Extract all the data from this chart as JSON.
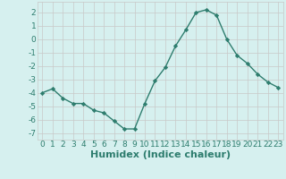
{
  "x": [
    0,
    1,
    2,
    3,
    4,
    5,
    6,
    7,
    8,
    9,
    10,
    11,
    12,
    13,
    14,
    15,
    16,
    17,
    18,
    19,
    20,
    21,
    22,
    23
  ],
  "y": [
    -4.0,
    -3.7,
    -4.4,
    -4.8,
    -4.8,
    -5.3,
    -5.5,
    -6.1,
    -6.7,
    -6.7,
    -4.8,
    -3.1,
    -2.1,
    -0.5,
    0.7,
    2.0,
    2.2,
    1.8,
    0.0,
    -1.2,
    -1.8,
    -2.6,
    -3.2,
    -3.6
  ],
  "line_color": "#2e7d6e",
  "marker": "D",
  "marker_size": 2.2,
  "bg_color": "#d6f0ef",
  "grid_color": "#c8c8c8",
  "tick_label_color": "#2e7d6e",
  "xlabel": "Humidex (Indice chaleur)",
  "ylim": [
    -7.5,
    2.8
  ],
  "yticks": [
    -7,
    -6,
    -5,
    -4,
    -3,
    -2,
    -1,
    0,
    1,
    2
  ],
  "xlim": [
    -0.5,
    23.5
  ],
  "xticks": [
    0,
    1,
    2,
    3,
    4,
    5,
    6,
    7,
    8,
    9,
    10,
    11,
    12,
    13,
    14,
    15,
    16,
    17,
    18,
    19,
    20,
    21,
    22,
    23
  ],
  "xlabel_fontsize": 8,
  "tick_fontsize": 6.5
}
